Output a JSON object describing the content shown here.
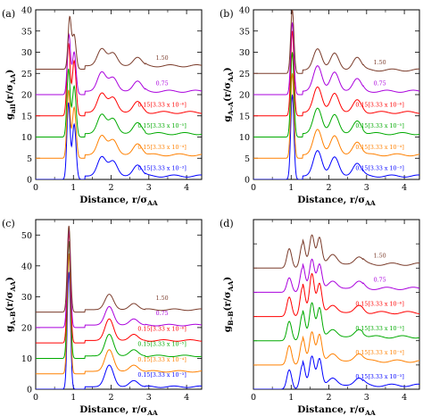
{
  "figure": {
    "panels": [
      {
        "id": "a",
        "label": "(a)",
        "xlabel": "Distance, r/σ",
        "xlabel_sub": "AA",
        "ylabel_main": "g",
        "ylabel_sub": "all",
        "ylabel_rest": "(r/σ",
        "ylabel_rest_sub": "AA",
        "ylabel_close": ")"
      },
      {
        "id": "b",
        "label": "(b)",
        "xlabel": "Distance, r/σ",
        "xlabel_sub": "AA",
        "ylabel_main": "g",
        "ylabel_sub": "A–A",
        "ylabel_rest": "(r/σ",
        "ylabel_rest_sub": "AA",
        "ylabel_close": ")"
      },
      {
        "id": "c",
        "label": "(c)",
        "xlabel": "Distance, r/σ",
        "xlabel_sub": "AA",
        "ylabel_main": "g",
        "ylabel_sub": "A–B",
        "ylabel_rest": "(r/σ",
        "ylabel_rest_sub": "AA",
        "ylabel_close": ")"
      },
      {
        "id": "d",
        "label": "(d)",
        "xlabel": "Distance, r/σ",
        "xlabel_sub": "AA",
        "ylabel_main": "g",
        "ylabel_sub": "B–B",
        "ylabel_rest": "(r/σ",
        "ylabel_rest_sub": "AA",
        "ylabel_close": ")"
      }
    ]
  },
  "chart_data": [
    {
      "panel": "a",
      "type": "line",
      "xlim": [
        0,
        4.4
      ],
      "ylim": [
        0,
        40
      ],
      "xticks": [
        "0",
        "1",
        "2",
        "3",
        "4"
      ],
      "yticks": [
        "0",
        "5",
        "10",
        "15",
        "20",
        "25",
        "30",
        "35",
        "40"
      ],
      "series": [
        {
          "name": "0.15[3.33 x 10⁻³]",
          "color": "#0000ff",
          "offset": 0,
          "peaks": [
            [
              0.87,
              18
            ],
            [
              1.02,
              13
            ]
          ],
          "second": [
            [
              1.75,
              4.5
            ],
            [
              2.05,
              3.5
            ],
            [
              2.7,
              2.6
            ]
          ]
        },
        {
          "name": "0.15[3.33 x 10⁻⁴]",
          "color": "#ff8000",
          "offset": 5,
          "peaks": [
            [
              0.87,
              21
            ],
            [
              1.02,
              17
            ]
          ],
          "second": [
            [
              1.75,
              9.5
            ],
            [
              2.05,
              8.5
            ],
            [
              2.7,
              7.6
            ]
          ]
        },
        {
          "name": "0.15[3.33 x 10⁻⁵]",
          "color": "#00aa00",
          "offset": 10,
          "peaks": [
            [
              0.87,
              26
            ],
            [
              1.02,
              22
            ]
          ],
          "second": [
            [
              1.75,
              14.5
            ],
            [
              2.05,
              13.5
            ],
            [
              2.7,
              12.6
            ]
          ]
        },
        {
          "name": "0.15[3.33 x 10⁻⁶]",
          "color": "#ff0000",
          "offset": 15,
          "peaks": [
            [
              0.87,
              32
            ],
            [
              1.02,
              28
            ]
          ],
          "second": [
            [
              1.75,
              19.5
            ],
            [
              2.05,
              18.5
            ],
            [
              2.7,
              17.6
            ]
          ]
        },
        {
          "name": "0.75",
          "color": "#aa00dd",
          "offset": 20,
          "peaks": [
            [
              0.88,
              34
            ],
            [
              1.02,
              30
            ]
          ],
          "second": [
            [
              1.75,
              24.5
            ],
            [
              2.05,
              23.2
            ],
            [
              2.7,
              22.4
            ]
          ]
        },
        {
          "name": "1.50",
          "color": "#7a3b2a",
          "offset": 26,
          "peaks": [
            [
              0.9,
              38
            ],
            [
              1.02,
              34
            ]
          ],
          "second": [
            [
              1.75,
              30
            ],
            [
              2.05,
              29
            ],
            [
              2.7,
              28
            ]
          ]
        }
      ]
    },
    {
      "panel": "b",
      "type": "line",
      "xlim": [
        0,
        4.4
      ],
      "ylim": [
        0,
        40
      ],
      "xticks": [
        "0",
        "1",
        "2",
        "3",
        "4"
      ],
      "yticks": [
        "0",
        "5",
        "10",
        "15",
        "20",
        "25",
        "30",
        "35",
        "40"
      ],
      "series": [
        {
          "name": "0.15[3.33 x 10⁻³]",
          "color": "#0000ff",
          "offset": 0,
          "peaks": [
            [
              1.03,
              20
            ]
          ],
          "second": [
            [
              1.7,
              6
            ],
            [
              2.15,
              4.5
            ],
            [
              2.75,
              3
            ]
          ]
        },
        {
          "name": "0.15[3.33 x 10⁻⁴]",
          "color": "#ff8000",
          "offset": 5,
          "peaks": [
            [
              1.03,
              25
            ]
          ],
          "second": [
            [
              1.7,
              11
            ],
            [
              2.15,
              9.5
            ],
            [
              2.75,
              8
            ]
          ]
        },
        {
          "name": "0.15[3.33 x 10⁻⁵]",
          "color": "#00aa00",
          "offset": 10,
          "peaks": [
            [
              1.03,
              30
            ]
          ],
          "second": [
            [
              1.7,
              16
            ],
            [
              2.15,
              14.5
            ],
            [
              2.75,
              13
            ]
          ]
        },
        {
          "name": "0.15[3.33 x 10⁻⁶]",
          "color": "#ff0000",
          "offset": 15,
          "peaks": [
            [
              1.03,
              35
            ]
          ],
          "second": [
            [
              1.7,
              21
            ],
            [
              2.15,
              19.5
            ],
            [
              2.75,
              18
            ]
          ]
        },
        {
          "name": "0.75",
          "color": "#aa00dd",
          "offset": 20,
          "peaks": [
            [
              1.03,
              37
            ]
          ],
          "second": [
            [
              1.7,
              26
            ],
            [
              2.15,
              24.5
            ],
            [
              2.75,
              23
            ]
          ]
        },
        {
          "name": "1.50",
          "color": "#7a3b2a",
          "offset": 25,
          "peaks": [
            [
              1.03,
              40
            ]
          ],
          "second": [
            [
              1.7,
              30
            ],
            [
              2.15,
              29
            ],
            [
              2.75,
              28
            ]
          ]
        }
      ]
    },
    {
      "panel": "c",
      "type": "line",
      "xlim": [
        0,
        4.4
      ],
      "ylim": [
        0,
        55
      ],
      "xticks": [
        "0",
        "1",
        "2",
        "3",
        "4"
      ],
      "yticks": [
        "0",
        "10",
        "20",
        "30",
        "40",
        "50"
      ],
      "series": [
        {
          "name": "0.15[3.33 x 10⁻³]",
          "color": "#0000ff",
          "offset": 0,
          "peaks": [
            [
              0.88,
              38
            ]
          ],
          "second": [
            [
              1.95,
              7
            ],
            [
              2.6,
              2
            ]
          ]
        },
        {
          "name": "0.15[3.33 x 10⁻⁴]",
          "color": "#ff8000",
          "offset": 5,
          "peaks": [
            [
              0.88,
              44
            ]
          ],
          "second": [
            [
              1.95,
              12
            ],
            [
              2.6,
              7
            ]
          ]
        },
        {
          "name": "0.15[3.33 x 10⁻⁵]",
          "color": "#00aa00",
          "offset": 10,
          "peaks": [
            [
              0.88,
              48
            ]
          ],
          "second": [
            [
              1.95,
              17
            ],
            [
              2.6,
              12
            ]
          ]
        },
        {
          "name": "0.15[3.33 x 10⁻⁶]",
          "color": "#ff0000",
          "offset": 15,
          "peaks": [
            [
              0.88,
              51
            ]
          ],
          "second": [
            [
              1.95,
              22
            ],
            [
              2.6,
              17
            ]
          ]
        },
        {
          "name": "0.75",
          "color": "#aa00dd",
          "offset": 20,
          "peaks": [
            [
              0.88,
              52
            ]
          ],
          "second": [
            [
              1.95,
              26
            ],
            [
              2.6,
              22
            ]
          ]
        },
        {
          "name": "1.50",
          "color": "#7a3b2a",
          "offset": 25,
          "peaks": [
            [
              0.88,
              53
            ]
          ],
          "second": [
            [
              1.95,
              30
            ],
            [
              2.6,
              27
            ]
          ]
        }
      ]
    },
    {
      "panel": "d",
      "type": "line",
      "xlim": [
        0,
        4.4
      ],
      "ylim": [
        0,
        35
      ],
      "xticks": [
        "0",
        "1",
        "2",
        "3",
        "4"
      ],
      "yticks": [],
      "series": [
        {
          "name": "0.15[3.33 x 10⁻³]",
          "color": "#0000ff",
          "offset": 0,
          "peaks": [
            [
              0.95,
              4
            ],
            [
              1.3,
              5
            ],
            [
              1.55,
              6
            ],
            [
              1.75,
              5.5
            ]
          ],
          "second": [
            [
              2.1,
              1.5
            ],
            [
              2.8,
              1.5
            ]
          ]
        },
        {
          "name": "0.15[3.33 x 10⁻⁴]",
          "color": "#ff8000",
          "offset": 5,
          "peaks": [
            [
              0.95,
              9
            ],
            [
              1.3,
              10
            ],
            [
              1.55,
              11
            ],
            [
              1.75,
              10.5
            ]
          ],
          "second": [
            [
              2.1,
              6.5
            ],
            [
              2.8,
              6.5
            ]
          ]
        },
        {
          "name": "0.15[3.33 x 10⁻⁵]",
          "color": "#00aa00",
          "offset": 10,
          "peaks": [
            [
              0.95,
              14
            ],
            [
              1.3,
              15.5
            ],
            [
              1.55,
              17
            ],
            [
              1.75,
              16
            ]
          ],
          "second": [
            [
              2.1,
              11.5
            ],
            [
              2.8,
              11.5
            ]
          ]
        },
        {
          "name": "0.15[3.33 x 10⁻⁶]",
          "color": "#ff0000",
          "offset": 15,
          "peaks": [
            [
              0.95,
              19
            ],
            [
              1.3,
              21
            ],
            [
              1.55,
              23
            ],
            [
              1.75,
              21
            ]
          ],
          "second": [
            [
              2.1,
              16.5
            ],
            [
              2.8,
              16.5
            ]
          ]
        },
        {
          "name": "0.75",
          "color": "#aa00dd",
          "offset": 20,
          "peaks": [
            [
              0.95,
              23
            ],
            [
              1.3,
              25
            ],
            [
              1.55,
              26
            ],
            [
              1.75,
              25
            ]
          ],
          "second": [
            [
              2.1,
              21.5
            ],
            [
              2.8,
              21.5
            ]
          ]
        },
        {
          "name": "1.50",
          "color": "#7a3b2a",
          "offset": 25,
          "peaks": [
            [
              0.95,
              29
            ],
            [
              1.3,
              30
            ],
            [
              1.55,
              31
            ],
            [
              1.75,
              30.5
            ]
          ],
          "second": [
            [
              2.1,
              27
            ],
            [
              2.8,
              26.5
            ]
          ]
        }
      ]
    }
  ]
}
